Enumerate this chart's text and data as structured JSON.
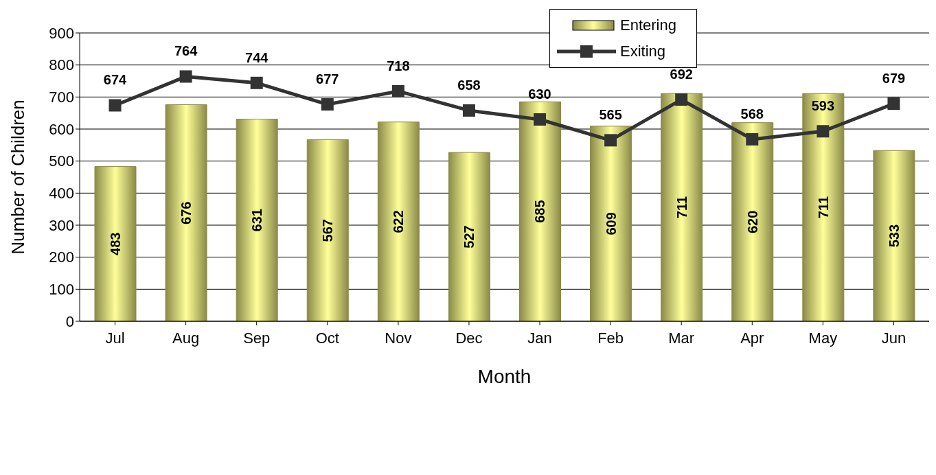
{
  "chart_data": {
    "type": "bar",
    "xlabel": "Month",
    "ylabel": "Number of Children",
    "categories": [
      "Jul",
      "Aug",
      "Sep",
      "Oct",
      "Nov",
      "Dec",
      "Jan",
      "Feb",
      "Mar",
      "Apr",
      "May",
      "Jun"
    ],
    "series": [
      {
        "name": "Entering",
        "color": "#8a8a48",
        "values": [
          483,
          676,
          631,
          567,
          622,
          527,
          685,
          609,
          711,
          620,
          711,
          533
        ]
      },
      {
        "name": "Exiting",
        "type": "line",
        "color": "#333333",
        "marker": "square",
        "values": [
          674,
          764,
          744,
          677,
          718,
          658,
          630,
          565,
          692,
          568,
          593,
          679
        ]
      }
    ],
    "ylim": [
      0,
      900
    ],
    "yticks": [
      0,
      100,
      200,
      300,
      400,
      500,
      600,
      700,
      800,
      900
    ],
    "grid": "y",
    "legend": "top right",
    "data_labels": true
  }
}
